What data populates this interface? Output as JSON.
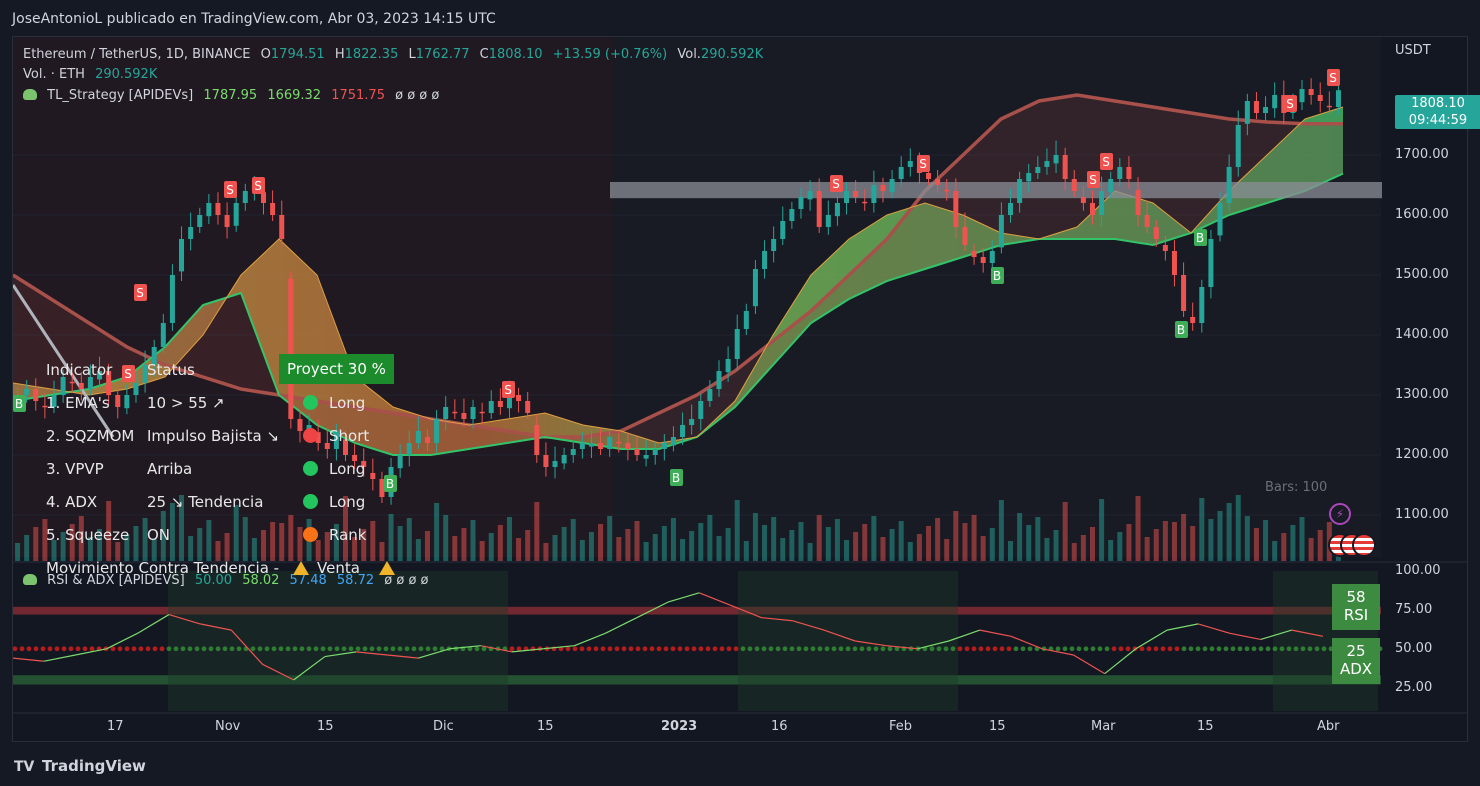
{
  "header": {
    "title": "JoseAntonioL publicado en TradingView.com, Abr 03, 2023 14:15 UTC"
  },
  "footer": {
    "brand": "TradingView",
    "logo": "TV"
  },
  "legend": {
    "symbol": "Ethereum / TetherUS, 1D, BINANCE",
    "o_label": "O",
    "o": "1794.51",
    "h_label": "H",
    "h": "1822.35",
    "l_label": "L",
    "l": "1762.77",
    "c_label": "C",
    "c": "1808.10",
    "change": "+13.59 (+0.76%)",
    "vol_label": "Vol.",
    "vol": "290.592K",
    "vol_line_label": "Vol. · ETH",
    "vol_line_value": "290.592K",
    "strategy_name": "TL_Strategy [APIDEVs]",
    "strategy_v1": "1787.95",
    "strategy_v2": "1669.32",
    "strategy_v3": "1751.75",
    "placeholders": "ø ø ø ø"
  },
  "price_axis": {
    "unit": "USDT",
    "ticks": [
      "1700.00",
      "1600.00",
      "1500.00",
      "1400.00",
      "1300.00",
      "1200.00",
      "1100.00"
    ],
    "last_price": "1808.10",
    "countdown": "09:44:59"
  },
  "bars_label": "Bars: 100",
  "time_axis": [
    "17",
    "Nov",
    "15",
    "Dic",
    "15",
    "2023",
    "16",
    "Feb",
    "15",
    "Mar",
    "15",
    "Abr"
  ],
  "indicator_table": {
    "headers": {
      "indicator": "Indicator",
      "status": "Status",
      "project": "Proyect 30 %"
    },
    "rows": [
      {
        "name": "1. EMA's",
        "status": "10 > 55 ↗",
        "signal": "Long",
        "color": "#22c55e"
      },
      {
        "name": "2. SQZMOM",
        "status": "Impulso Bajista ↘",
        "signal": "Short",
        "color": "#ef4444"
      },
      {
        "name": "3. VPVP",
        "status": "Arriba",
        "signal": "Long",
        "color": "#22c55e"
      },
      {
        "name": "4. ADX",
        "status": "25 ↘ Tendencia",
        "signal": "Long",
        "color": "#22c55e"
      },
      {
        "name": "5. Squeeze",
        "status": "ON",
        "signal": "Rank",
        "color": "#f97316"
      }
    ],
    "footer_text": "Movimiento Contra Tendencia -",
    "footer_signal": "Venta"
  },
  "rsi_pane": {
    "title": "RSI & ADX [APIDEVS]",
    "v1": "50.00",
    "v2": "58.02",
    "v3": "57.48",
    "v4": "58.72",
    "placeholders": "ø ø ø ø",
    "ticks": [
      "100.00",
      "75.00",
      "50.00",
      "25.00"
    ],
    "rsi_value": "58",
    "rsi_label": "RSI",
    "adx_value": "25",
    "adx_label": "ADX"
  },
  "colors": {
    "up": "#26a69a",
    "down": "#ef5350",
    "accent": "#3d8b40"
  },
  "chart_data": {
    "type": "candlestick",
    "symbol": "Ethereum / TetherUS",
    "timeframe": "1D",
    "exchange": "BINANCE",
    "y_unit": "USDT",
    "ylim": [
      1030,
      1880
    ],
    "x_tick_labels": [
      "17",
      "Nov",
      "15",
      "Dic",
      "15",
      "2023",
      "16",
      "Feb",
      "15",
      "Mar",
      "15",
      "Abr"
    ],
    "close_path": [
      1300,
      1310,
      1290,
      1280,
      1300,
      1330,
      1320,
      1310,
      1330,
      1340,
      1300,
      1280,
      1300,
      1320,
      1350,
      1380,
      1420,
      1500,
      1560,
      1580,
      1600,
      1620,
      1600,
      1580,
      1620,
      1640,
      1650,
      1620,
      1600,
      1560,
      1260,
      1240,
      1250,
      1220,
      1210,
      1240,
      1200,
      1190,
      1180,
      1160,
      1130,
      1180,
      1200,
      1220,
      1240,
      1220,
      1260,
      1280,
      1270,
      1260,
      1280,
      1270,
      1290,
      1280,
      1300,
      1290,
      1270,
      1200,
      1180,
      1190,
      1200,
      1210,
      1220,
      1220,
      1210,
      1230,
      1220,
      1210,
      1200,
      1200,
      1210,
      1220,
      1230,
      1250,
      1260,
      1290,
      1310,
      1340,
      1360,
      1410,
      1440,
      1510,
      1540,
      1560,
      1590,
      1610,
      1630,
      1640,
      1580,
      1600,
      1620,
      1640,
      1630,
      1620,
      1650,
      1640,
      1660,
      1680,
      1690,
      1670,
      1660,
      1650,
      1640,
      1580,
      1550,
      1530,
      1520,
      1540,
      1600,
      1620,
      1660,
      1670,
      1680,
      1690,
      1700,
      1660,
      1640,
      1620,
      1600,
      1640,
      1660,
      1680,
      1660,
      1600,
      1580,
      1560,
      1540,
      1500,
      1440,
      1420,
      1480,
      1560,
      1620,
      1680,
      1750,
      1790,
      1770,
      1780,
      1800,
      1770,
      1790,
      1810,
      1800,
      1790,
      1780,
      1808
    ],
    "ema_fast": [
      1320,
      1310,
      1300,
      1310,
      1330,
      1400,
      1500,
      1560,
      1500,
      1330,
      1280,
      1260,
      1250,
      1260,
      1270,
      1250,
      1240,
      1220,
      1230,
      1290,
      1400,
      1500,
      1560,
      1600,
      1620,
      1600,
      1570,
      1560,
      1580,
      1640,
      1620,
      1570,
      1640,
      1700,
      1760,
      1780
    ],
    "ema_slow": [
      1290,
      1300,
      1310,
      1330,
      1380,
      1450,
      1470,
      1300,
      1250,
      1220,
      1200,
      1200,
      1210,
      1220,
      1230,
      1220,
      1210,
      1210,
      1230,
      1280,
      1350,
      1420,
      1460,
      1490,
      1510,
      1530,
      1550,
      1560,
      1560,
      1560,
      1550,
      1570,
      1600,
      1620,
      1640,
      1669
    ],
    "ma_long": [
      1500,
      1460,
      1420,
      1380,
      1350,
      1330,
      1310,
      1300,
      1290,
      1280,
      1270,
      1260,
      1250,
      1240,
      1230,
      1230,
      1240,
      1270,
      1300,
      1340,
      1390,
      1440,
      1500,
      1560,
      1640,
      1700,
      1760,
      1790,
      1800,
      1790,
      1780,
      1770,
      1760,
      1755,
      1752,
      1752
    ],
    "resistance_band": [
      1628,
      1655
    ],
    "sell_signal_label": "S",
    "buy_signal_label": "B",
    "rsi": [
      44,
      42,
      46,
      50,
      60,
      72,
      66,
      62,
      40,
      30,
      45,
      48,
      46,
      44,
      50,
      52,
      48,
      50,
      52,
      60,
      70,
      80,
      86,
      78,
      70,
      68,
      62,
      55,
      52,
      50,
      55,
      62,
      58,
      50,
      46,
      34,
      50,
      62,
      66,
      60,
      56,
      62,
      58
    ],
    "rsi_levels": [
      75,
      50,
      30
    ]
  }
}
